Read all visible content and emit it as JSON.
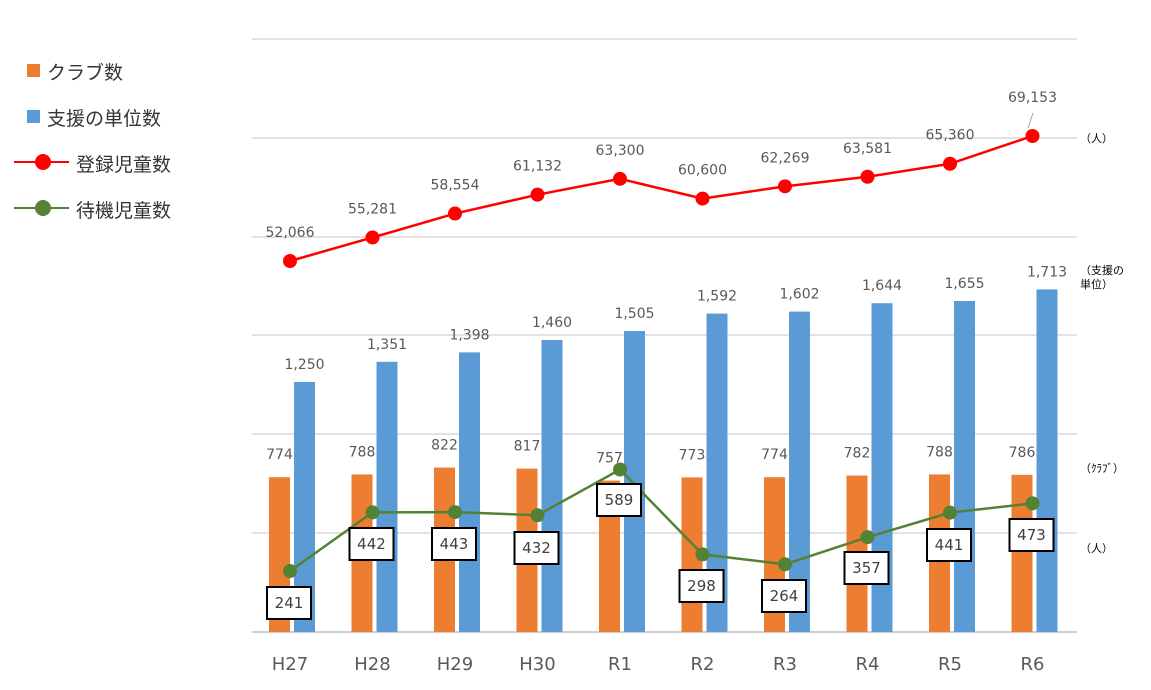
{
  "legend": {
    "clubs": "クラブ数",
    "units": "支援の単位数",
    "registered": "登録児童数",
    "waiting": "待機児童数"
  },
  "colors": {
    "clubs": "#ED7D31",
    "units": "#5B9BD5",
    "registered": "#FF0000",
    "waiting": "#548235",
    "grid": "#D9D9D9",
    "label": "#595959"
  },
  "chart_data": {
    "type": "bar",
    "categories": [
      "H27",
      "H28",
      "H29",
      "H30",
      "R1",
      "R2",
      "R3",
      "R4",
      "R5",
      "R6"
    ],
    "series": [
      {
        "name": "クラブ数",
        "kind": "bar",
        "values": [
          774,
          788,
          822,
          817,
          757,
          773,
          774,
          782,
          788,
          786
        ]
      },
      {
        "name": "支援の単位数",
        "kind": "bar",
        "values": [
          1250,
          1351,
          1398,
          1460,
          1505,
          1592,
          1602,
          1644,
          1655,
          1713
        ]
      },
      {
        "name": "登録児童数",
        "kind": "line",
        "values": [
          52066,
          55281,
          58554,
          61132,
          63300,
          60600,
          62269,
          63581,
          65360,
          69153
        ]
      },
      {
        "name": "待機児童数",
        "kind": "line",
        "values": [
          241,
          442,
          443,
          432,
          589,
          298,
          264,
          357,
          441,
          473
        ]
      }
    ],
    "unit_labels": {
      "registered": "（人）",
      "units": "（支援の単位）",
      "clubs": "（ｸﾗﾌﾞ）",
      "waiting": "（人）"
    },
    "grid": true,
    "legend_position": "top-left"
  }
}
